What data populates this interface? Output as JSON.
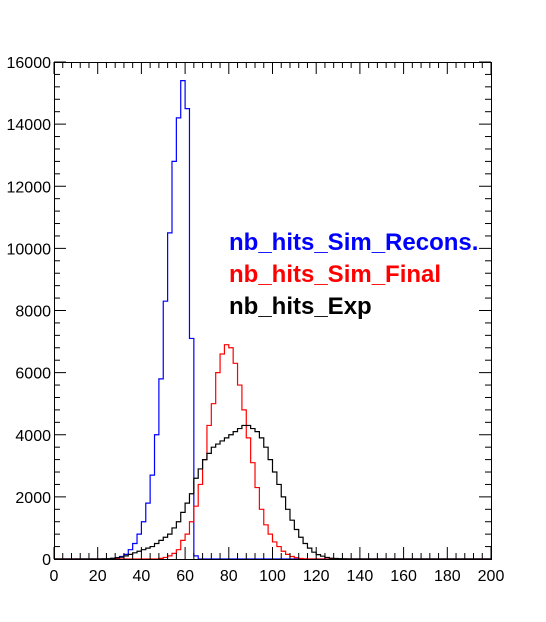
{
  "chart_data": {
    "type": "histogram",
    "xlim": [
      0,
      200
    ],
    "ylim": [
      0,
      16000
    ],
    "bin_width": 2,
    "grid": false,
    "legend_position": "upper-right, inside plot",
    "x_tick_labels": [
      "0",
      "20",
      "40",
      "60",
      "80",
      "100",
      "120",
      "140",
      "160",
      "180",
      "200"
    ],
    "y_tick_labels": [
      "0",
      "2000",
      "4000",
      "6000",
      "8000",
      "10000",
      "12000",
      "14000",
      "16000"
    ],
    "series": [
      {
        "name": "nb_hits_Sim_Recons.",
        "color": "#0000ff",
        "x_start": 0,
        "bin_width": 2,
        "values": [
          0,
          0,
          0,
          0,
          0,
          0,
          0,
          0,
          0,
          0,
          0,
          0,
          0,
          20,
          40,
          80,
          150,
          300,
          500,
          800,
          1200,
          1800,
          2700,
          4000,
          5800,
          8300,
          10500,
          12800,
          14200,
          15400,
          14500,
          7100,
          100,
          0,
          0,
          0,
          0,
          0,
          0,
          0,
          0,
          0,
          0,
          0,
          0,
          0,
          0,
          0,
          0,
          0,
          0,
          0,
          0,
          0,
          0,
          0,
          0,
          0,
          0,
          0,
          0,
          0,
          0,
          0,
          0,
          0,
          0,
          0,
          0,
          0,
          0,
          0,
          0,
          0,
          0,
          0,
          0,
          0,
          0,
          0,
          0,
          0,
          0,
          0,
          0,
          0,
          0,
          0,
          0,
          0,
          0,
          0,
          0,
          0,
          0,
          0,
          0,
          0,
          0,
          0
        ]
      },
      {
        "name": "nb_hits_Sim_Final",
        "color": "#ff0000",
        "x_start": 0,
        "bin_width": 2,
        "values": [
          0,
          0,
          0,
          0,
          0,
          0,
          0,
          0,
          0,
          0,
          0,
          0,
          0,
          0,
          0,
          0,
          0,
          0,
          0,
          0,
          0,
          0,
          0,
          0,
          20,
          50,
          100,
          180,
          300,
          600,
          800,
          1200,
          1700,
          2400,
          3200,
          4300,
          5000,
          6000,
          6600,
          6900,
          6800,
          6300,
          5600,
          4800,
          3900,
          3100,
          2300,
          1600,
          1100,
          800,
          550,
          400,
          250,
          150,
          80,
          40,
          15,
          5,
          0,
          0,
          0,
          0,
          0,
          0,
          0,
          0,
          0,
          0,
          0,
          0,
          0,
          0,
          0,
          0,
          0,
          0,
          0,
          0,
          0,
          0,
          0,
          0,
          0,
          0,
          0,
          0,
          0,
          0,
          0,
          0,
          0,
          0,
          0,
          0,
          0,
          0,
          0,
          0,
          0,
          0
        ]
      },
      {
        "name": "nb_hits_Exp",
        "color": "#000000",
        "x_start": 0,
        "bin_width": 2,
        "values": [
          0,
          0,
          0,
          0,
          0,
          0,
          0,
          0,
          0,
          0,
          0,
          5,
          10,
          20,
          40,
          60,
          100,
          150,
          200,
          250,
          300,
          350,
          400,
          500,
          600,
          700,
          800,
          1000,
          1200,
          1500,
          1800,
          2100,
          2600,
          2900,
          3200,
          3400,
          3600,
          3700,
          3800,
          3900,
          4000,
          4100,
          4200,
          4300,
          4300,
          4200,
          4100,
          3900,
          3600,
          3200,
          2800,
          2400,
          2000,
          1600,
          1250,
          950,
          700,
          500,
          350,
          220,
          140,
          90,
          50,
          25,
          15,
          8,
          5,
          0,
          0,
          0,
          0,
          0,
          0,
          0,
          0,
          0,
          0,
          0,
          0,
          0,
          0,
          0,
          0,
          0,
          0,
          0,
          0,
          0,
          0,
          0,
          0,
          0,
          0,
          0,
          0,
          0,
          0,
          0,
          0,
          0
        ]
      }
    ]
  }
}
